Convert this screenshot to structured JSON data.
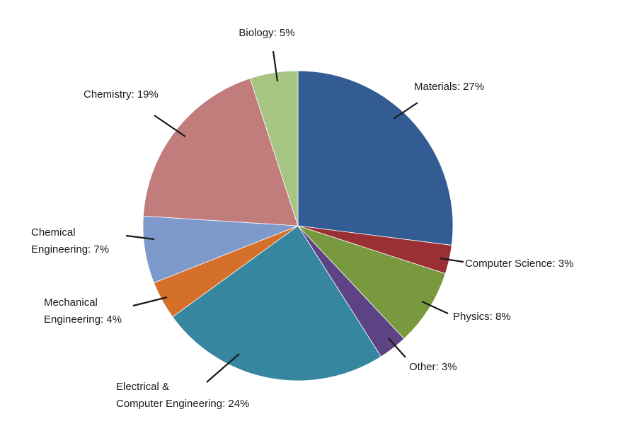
{
  "chart_data": {
    "type": "pie",
    "title": "",
    "slices": [
      {
        "name": "Materials",
        "value": 27,
        "label": [
          "Materials: 27%"
        ],
        "color": "#335c94"
      },
      {
        "name": "Computer Science",
        "value": 3,
        "label": [
          "Computer Science: 3%"
        ],
        "color": "#9b3034"
      },
      {
        "name": "Physics",
        "value": 8,
        "label": [
          "Physics: 8%"
        ],
        "color": "#78993e"
      },
      {
        "name": "Other",
        "value": 3,
        "label": [
          "Other: 3%"
        ],
        "color": "#5d4384"
      },
      {
        "name": "Electrical & Computer Engineering",
        "value": 24,
        "label": [
          "Electrical &",
          "Computer Engineering: 24%"
        ],
        "color": "#36869f"
      },
      {
        "name": "Mechanical Engineering",
        "value": 4,
        "label": [
          "Mechanical",
          "Engineering: 4%"
        ],
        "color": "#d5702a"
      },
      {
        "name": "Chemical Engineering",
        "value": 7,
        "label": [
          "Chemical",
          "Engineering: 7%"
        ],
        "color": "#7e99cb"
      },
      {
        "name": "Chemistry",
        "value": 19,
        "label": [
          "Chemistry: 19%"
        ],
        "color": "#c17c7c"
      },
      {
        "name": "Biology",
        "value": 5,
        "label": [
          "Biology: 5%"
        ],
        "color": "#a6c583"
      }
    ],
    "start": "12 o'clock",
    "direction": "clockwise",
    "legend": "none"
  }
}
